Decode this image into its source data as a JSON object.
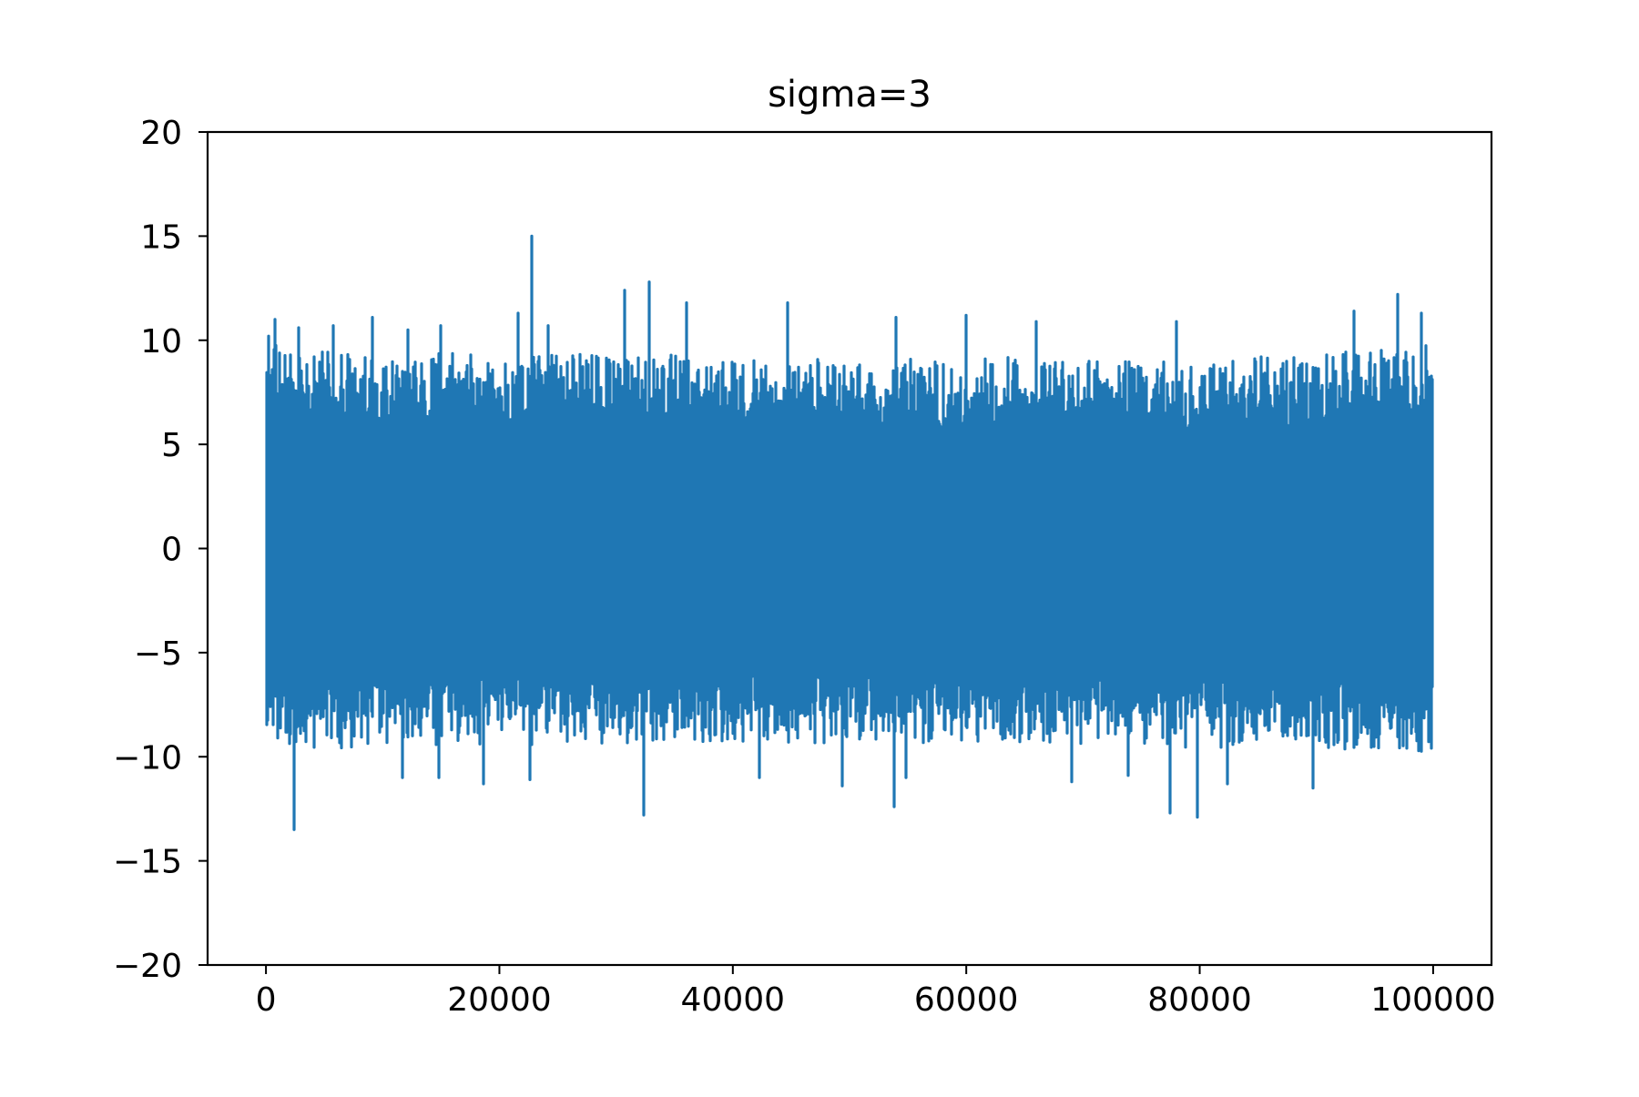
{
  "chart_data": {
    "type": "line",
    "title": "sigma=3",
    "xlabel": "",
    "ylabel": "",
    "xlim": [
      -5000,
      105000
    ],
    "ylim": [
      -20,
      20
    ],
    "x_ticks": [
      0,
      20000,
      40000,
      60000,
      80000,
      100000
    ],
    "x_tick_labels": [
      "0",
      "20000",
      "40000",
      "60000",
      "80000",
      "100000"
    ],
    "y_ticks": [
      -20,
      -15,
      -10,
      -5,
      0,
      5,
      10,
      15,
      20
    ],
    "y_tick_labels": [
      "−20",
      "−15",
      "−10",
      "−5",
      "0",
      "5",
      "10",
      "15",
      "20"
    ],
    "grid": false,
    "legend": "none",
    "series": [
      {
        "color": "#1f77b4",
        "x_range": [
          0,
          100000
        ],
        "n_points": 100000,
        "distribution": "normal",
        "mean": 0,
        "std": 3,
        "envelope": {
          "x": [
            0,
            5000,
            10000,
            15000,
            20000,
            25000,
            30000,
            35000,
            40000,
            45000,
            50000,
            55000,
            60000,
            65000,
            70000,
            75000,
            80000,
            85000,
            90000,
            95000,
            100000
          ],
          "upper": [
            8.5,
            8.2,
            7.9,
            8.1,
            7.8,
            8.0,
            7.8,
            7.9,
            7.7,
            7.8,
            7.6,
            7.7,
            7.7,
            7.9,
            7.8,
            7.7,
            7.6,
            7.8,
            7.9,
            8.2,
            8.4
          ],
          "lower": [
            -8.5,
            -8.3,
            -8.1,
            -8.2,
            -8.0,
            -8.1,
            -8.0,
            -8.0,
            -7.9,
            -8.0,
            -7.9,
            -8.0,
            -7.9,
            -8.1,
            -8.0,
            -8.1,
            -8.2,
            -8.1,
            -8.2,
            -8.3,
            -8.4
          ]
        },
        "peaks": [
          {
            "x": 200,
            "y": 10.2
          },
          {
            "x": 800,
            "y": 11.0
          },
          {
            "x": 2800,
            "y": 10.6
          },
          {
            "x": 5800,
            "y": 10.7
          },
          {
            "x": 9100,
            "y": 11.1
          },
          {
            "x": 12200,
            "y": 10.5
          },
          {
            "x": 15000,
            "y": 10.7
          },
          {
            "x": 21600,
            "y": 11.3
          },
          {
            "x": 22800,
            "y": 15.0
          },
          {
            "x": 24200,
            "y": 10.7
          },
          {
            "x": 30700,
            "y": 12.4
          },
          {
            "x": 32800,
            "y": 12.8
          },
          {
            "x": 36000,
            "y": 11.8
          },
          {
            "x": 44700,
            "y": 11.8
          },
          {
            "x": 54000,
            "y": 11.1
          },
          {
            "x": 60000,
            "y": 11.2
          },
          {
            "x": 66000,
            "y": 10.9
          },
          {
            "x": 78000,
            "y": 10.9
          },
          {
            "x": 93200,
            "y": 11.4
          },
          {
            "x": 97000,
            "y": 12.2
          },
          {
            "x": 99000,
            "y": 11.3
          }
        ],
        "troughs": [
          {
            "x": 2400,
            "y": -13.5
          },
          {
            "x": 11700,
            "y": -11.0
          },
          {
            "x": 14800,
            "y": -11.0
          },
          {
            "x": 18600,
            "y": -11.3
          },
          {
            "x": 22600,
            "y": -11.1
          },
          {
            "x": 32400,
            "y": -12.8
          },
          {
            "x": 42300,
            "y": -11.0
          },
          {
            "x": 49400,
            "y": -11.4
          },
          {
            "x": 53800,
            "y": -12.4
          },
          {
            "x": 54800,
            "y": -11.0
          },
          {
            "x": 69000,
            "y": -11.2
          },
          {
            "x": 73900,
            "y": -10.9
          },
          {
            "x": 77500,
            "y": -12.7
          },
          {
            "x": 79800,
            "y": -12.9
          },
          {
            "x": 82400,
            "y": -11.3
          },
          {
            "x": 89700,
            "y": -11.5
          }
        ]
      }
    ]
  }
}
